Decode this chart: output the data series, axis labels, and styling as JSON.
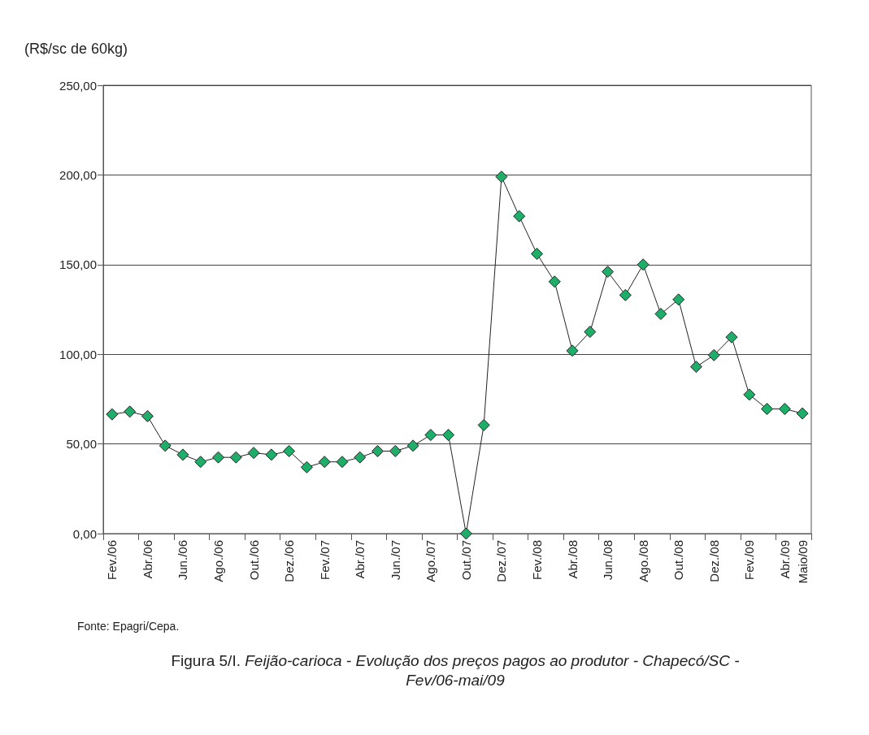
{
  "chart_data": {
    "type": "line",
    "title": "Figura 5/I.",
    "subtitle": "Feijão-carioca - Evolução dos preços pagos ao produtor - Chapecó/SC - Fev/06-mai/09",
    "ylabel": "(R$/sc de 60kg)",
    "annotations": [
      "Fonte: Epagri/Cepa."
    ],
    "categories": [
      "Fev./06",
      null,
      "Abr./06",
      null,
      "Jun./06",
      null,
      "Ago./06",
      null,
      "Out./06",
      null,
      "Dez./06",
      null,
      "Fev./07",
      null,
      "Abr./07",
      null,
      "Jun./07",
      null,
      "Ago./07",
      null,
      "Out./07",
      null,
      "Dez./07",
      null,
      "Fev./08",
      null,
      "Abr./08",
      null,
      "Jun./08",
      null,
      "Ago./08",
      null,
      "Out./08",
      null,
      "Dez./08",
      null,
      "Fev./09",
      null,
      "Abr./09",
      "Maio/09"
    ],
    "series": [
      {
        "color": "#1fae69",
        "values": [
          66.5,
          68,
          65.5,
          49,
          44,
          40,
          42.5,
          42.5,
          45,
          44,
          46,
          37,
          40,
          40,
          42.5,
          46,
          46,
          49,
          55,
          55,
          0,
          60.5,
          199,
          177,
          156,
          140.5,
          102,
          112.5,
          146,
          133,
          150,
          122.5,
          130.5,
          93,
          99.5,
          109.5,
          77.5,
          69.5,
          69.5,
          67
        ]
      }
    ],
    "ylim": [
      0,
      250
    ],
    "yticks": [
      {
        "value": 0,
        "label": "0,00"
      },
      {
        "value": 50,
        "label": "50,00"
      },
      {
        "value": 100,
        "label": "100,00"
      },
      {
        "value": 150,
        "label": "150,00"
      },
      {
        "value": 200,
        "label": "200,00"
      },
      {
        "value": 250,
        "label": "250,00"
      }
    ],
    "grid": "y",
    "marker": "diamond",
    "line_style": "solid"
  }
}
